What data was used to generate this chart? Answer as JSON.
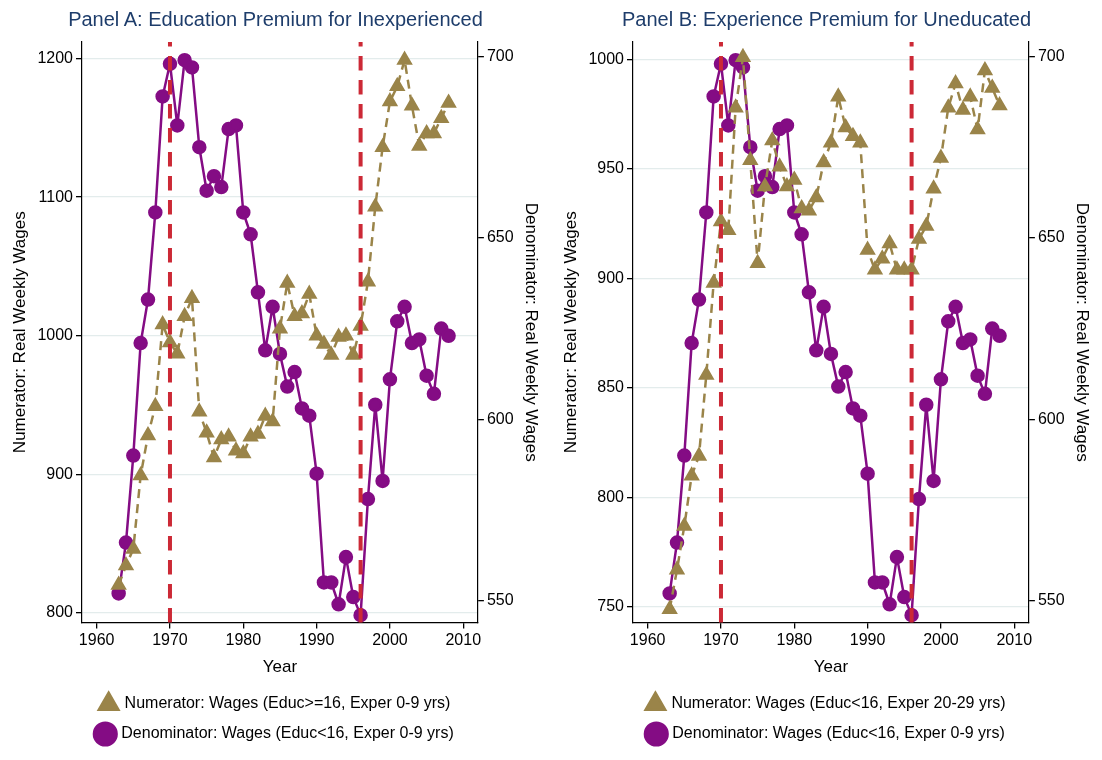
{
  "chart_data": [
    {
      "type": "line",
      "title": "Panel A: Education Premium for Inexperienced",
      "xlabel": "Year",
      "ylabel": "Numerator: Real Weekly Wages",
      "y2label": "Denominator: Real Weekly Wages",
      "x": [
        1963,
        1964,
        1965,
        1966,
        1967,
        1968,
        1969,
        1970,
        1971,
        1972,
        1973,
        1974,
        1975,
        1976,
        1977,
        1978,
        1979,
        1980,
        1981,
        1982,
        1983,
        1984,
        1985,
        1986,
        1987,
        1988,
        1989,
        1990,
        1991,
        1992,
        1993,
        1994,
        1995,
        1996,
        1997,
        1998,
        1999,
        2000,
        2001,
        2002,
        2003,
        2004,
        2005,
        2006,
        2007,
        2008
      ],
      "series": [
        {
          "name": "Numerator: Wages (Educ>=16, Exper 0-9 yrs)",
          "color": "#9a8449",
          "marker": "triangle",
          "line_style": "dashed",
          "values": [
            820,
            834,
            846,
            899,
            928,
            949,
            1008,
            995,
            987,
            1014,
            1027,
            945,
            930,
            912,
            925,
            927,
            917,
            915,
            927,
            929,
            942,
            938,
            1005,
            1038,
            1014,
            1016,
            1030,
            1000,
            994,
            986,
            999,
            1000,
            986,
            1007,
            1039,
            1093,
            1136,
            1169,
            1180,
            1199,
            1166,
            1137,
            1146,
            1146,
            1157,
            1168
          ]
        },
        {
          "name": "Denominator: Wages (Educ<16, Exper 0-9 yrs)",
          "color": "#840c84",
          "marker": "circle",
          "line_style": "solid",
          "axis": "y2",
          "values": [
            552,
            566,
            590,
            621,
            633,
            657,
            689,
            698,
            681,
            699,
            697,
            675,
            663,
            667,
            664,
            680,
            681,
            657,
            651,
            635,
            619,
            631,
            618,
            609,
            613,
            603,
            601,
            585,
            555,
            555,
            549,
            562,
            551,
            546,
            578,
            604,
            583,
            611,
            627,
            631,
            621,
            622,
            612,
            607,
            625,
            623
          ]
        }
      ],
      "xlim": [
        1958,
        2012
      ],
      "xticks": [
        1960,
        1970,
        1980,
        1990,
        2000,
        2010
      ],
      "ylim": [
        793,
        1212
      ],
      "yticks": [
        800,
        900,
        1000,
        1100,
        1200
      ],
      "y2lim": [
        544,
        704
      ],
      "y2ticks": [
        550,
        600,
        650,
        700
      ],
      "ref_lines": [
        {
          "axis": "x",
          "value": 1970,
          "color": "#cc2936",
          "line_style": "dashed"
        },
        {
          "axis": "x",
          "value": 1996,
          "color": "#cc2936",
          "line_style": "dashed"
        }
      ],
      "grid": "y",
      "legend": "bottom"
    },
    {
      "type": "line",
      "title": "Panel B: Experience Premium for Uneducated",
      "xlabel": "Year",
      "ylabel": "Numerator: Real Weekly Wages",
      "y2label": "Denominator: Real Weekly Wages",
      "x": [
        1963,
        1964,
        1965,
        1966,
        1967,
        1968,
        1969,
        1970,
        1971,
        1972,
        1973,
        1974,
        1975,
        1976,
        1977,
        1978,
        1979,
        1980,
        1981,
        1982,
        1983,
        1984,
        1985,
        1986,
        1987,
        1988,
        1989,
        1990,
        1991,
        1992,
        1993,
        1994,
        1995,
        1996,
        1997,
        1998,
        1999,
        2000,
        2001,
        2002,
        2003,
        2004,
        2005,
        2006,
        2007,
        2008
      ],
      "series": [
        {
          "name": "Numerator: Wages (Educ<16, Exper 20-29 yrs)",
          "color": "#9a8449",
          "marker": "triangle",
          "line_style": "dashed",
          "values": [
            749,
            767,
            787,
            810,
            819,
            856,
            898,
            926,
            922,
            978,
            1001,
            954,
            907,
            942,
            963,
            951,
            942,
            945,
            932,
            931,
            937,
            953,
            962,
            983,
            969,
            965,
            962,
            913,
            904,
            909,
            916,
            904,
            904,
            904,
            918,
            924,
            941,
            955,
            978,
            989,
            977,
            983,
            968,
            995,
            987,
            979
          ]
        },
        {
          "name": "Denominator: Wages (Educ<16, Exper 0-9 yrs)",
          "color": "#840c84",
          "marker": "circle",
          "line_style": "solid",
          "axis": "y2",
          "values": [
            552,
            566,
            590,
            621,
            633,
            657,
            689,
            698,
            681,
            699,
            697,
            675,
            663,
            667,
            664,
            680,
            681,
            657,
            651,
            635,
            619,
            631,
            618,
            609,
            613,
            603,
            601,
            585,
            555,
            555,
            549,
            562,
            551,
            546,
            578,
            604,
            583,
            611,
            627,
            631,
            621,
            622,
            612,
            607,
            625,
            623
          ]
        }
      ],
      "xlim": [
        1958,
        2012
      ],
      "xticks": [
        1960,
        1970,
        1980,
        1990,
        2000,
        2010
      ],
      "ylim": [
        743,
        1008
      ],
      "yticks": [
        750,
        800,
        850,
        900,
        950,
        1000
      ],
      "y2lim": [
        544,
        704
      ],
      "y2ticks": [
        550,
        600,
        650,
        700
      ],
      "ref_lines": [
        {
          "axis": "x",
          "value": 1970,
          "color": "#cc2936",
          "line_style": "dashed"
        },
        {
          "axis": "x",
          "value": 1996,
          "color": "#cc2936",
          "line_style": "dashed"
        }
      ],
      "grid": "y",
      "legend": "bottom"
    }
  ]
}
